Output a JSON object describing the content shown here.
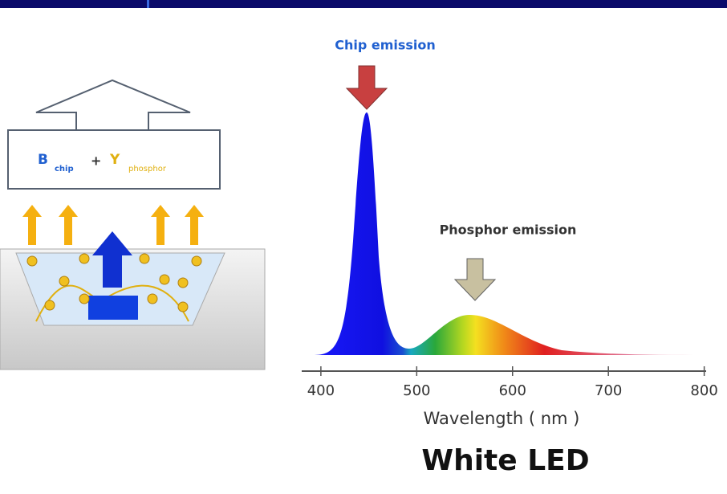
{
  "legend_box": {
    "b": "B",
    "chip": "chip",
    "plus": "+",
    "y": "Y",
    "phosphor": "phosphor"
  },
  "spectrum": {
    "chip_label": "Chip emission",
    "phosphor_label": "Phosphor emission",
    "xlabel": "Wavelength ( nm )",
    "xlim": [
      380,
      802
    ],
    "xticks": [
      400,
      500,
      600,
      700,
      800
    ]
  },
  "title": "White LED"
}
